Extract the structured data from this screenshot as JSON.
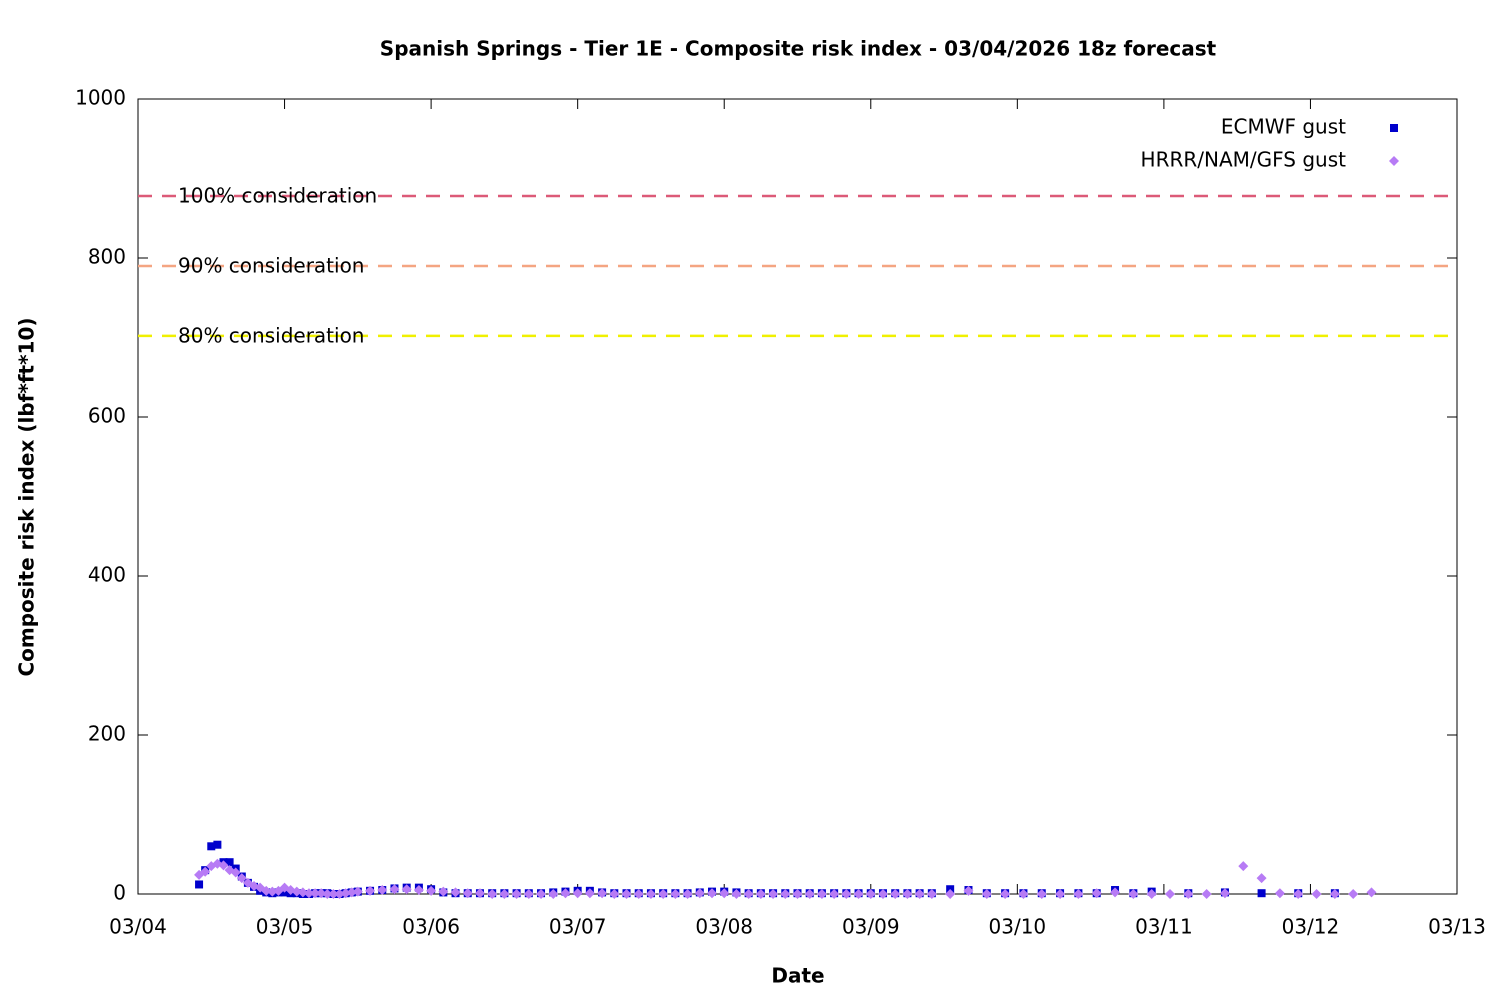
{
  "chart_data": {
    "type": "scatter",
    "title": "Spanish Springs - Tier 1E - Composite risk index - 03/04/2026 18z forecast",
    "x_label": "Date",
    "y_label": "Composite risk index (lbf*ft*10)",
    "x": [
      10,
      11,
      12,
      13,
      14,
      15,
      16,
      17,
      18,
      19,
      20,
      21,
      22,
      23,
      24,
      25,
      26,
      27,
      28,
      29,
      30,
      31,
      32,
      33,
      34,
      35,
      36,
      38,
      40,
      42,
      44,
      46,
      48,
      50,
      52,
      54,
      56,
      58,
      60,
      62,
      64,
      66,
      68,
      70,
      72,
      74,
      76,
      78,
      80,
      82,
      84,
      86,
      88,
      90,
      92,
      94,
      96,
      98,
      100,
      102,
      104,
      106,
      108,
      110,
      112,
      114,
      116,
      118,
      120,
      122,
      124,
      126,
      128,
      130,
      133,
      136,
      139,
      142,
      145,
      148,
      151,
      154,
      157,
      160,
      163,
      166,
      169,
      172,
      175,
      178,
      181,
      184,
      187,
      190,
      193,
      196,
      199,
      202
    ],
    "series": [
      {
        "name": "ECMWF gust",
        "color": "#0000cc",
        "marker": "square",
        "values": [
          12,
          30,
          60,
          62,
          40,
          40,
          32,
          22,
          14,
          9,
          4,
          2,
          1,
          2,
          2,
          1,
          1,
          0,
          0,
          1,
          1,
          1,
          0,
          0,
          1,
          2,
          3,
          4,
          5,
          7,
          8,
          8,
          6,
          2,
          1,
          1,
          1,
          1,
          1,
          1,
          1,
          1,
          2,
          3,
          4,
          4,
          2,
          1,
          1,
          1,
          1,
          1,
          1,
          1,
          2,
          3,
          3,
          2,
          1,
          1,
          1,
          1,
          1,
          1,
          1,
          1,
          1,
          1,
          1,
          1,
          1,
          1,
          1,
          1,
          6,
          5,
          1,
          1,
          1,
          1,
          1,
          1,
          1,
          5,
          1,
          3,
          null,
          1,
          null,
          2,
          null,
          1,
          null,
          1,
          null,
          1,
          null,
          null
        ]
      },
      {
        "name": "HRRR/NAM/GFS gust",
        "color": "#b77bf5",
        "marker": "diamond",
        "values": [
          24,
          28,
          35,
          38,
          36,
          30,
          27,
          20,
          14,
          10,
          8,
          4,
          3,
          4,
          8,
          5,
          3,
          2,
          1,
          1,
          1,
          0,
          0,
          0,
          1,
          2,
          3,
          4,
          5,
          6,
          6,
          5,
          4,
          3,
          2,
          1,
          1,
          0,
          0,
          0,
          0,
          0,
          0,
          1,
          1,
          1,
          1,
          0,
          0,
          0,
          0,
          0,
          0,
          0,
          1,
          1,
          1,
          0,
          0,
          0,
          0,
          0,
          0,
          0,
          0,
          0,
          0,
          0,
          0,
          0,
          0,
          0,
          0,
          0,
          0,
          4,
          0,
          0,
          0,
          0,
          0,
          0,
          1,
          2,
          0,
          0,
          0,
          0,
          0,
          1,
          35,
          20,
          1,
          0,
          0,
          0,
          0,
          2
        ]
      }
    ],
    "thresholds": [
      {
        "label": "100% consideration",
        "value": 878,
        "color": "#dc5a78"
      },
      {
        "label": "90% consideration",
        "value": 790,
        "color": "#f4a582"
      },
      {
        "label": "80% consideration",
        "value": 702,
        "color": "#f0f000"
      }
    ],
    "xlim": [
      0,
      216
    ],
    "xticks": [
      {
        "value": 0,
        "label": "03/04"
      },
      {
        "value": 24,
        "label": "03/05"
      },
      {
        "value": 48,
        "label": "03/06"
      },
      {
        "value": 72,
        "label": "03/07"
      },
      {
        "value": 96,
        "label": "03/08"
      },
      {
        "value": 120,
        "label": "03/09"
      },
      {
        "value": 144,
        "label": "03/10"
      },
      {
        "value": 168,
        "label": "03/11"
      },
      {
        "value": 192,
        "label": "03/12"
      },
      {
        "value": 216,
        "label": "03/13"
      }
    ],
    "ylim": [
      0,
      1000
    ],
    "yticks": [
      0,
      200,
      400,
      600,
      800,
      1000
    ],
    "grid": false,
    "legend": "top-right"
  }
}
